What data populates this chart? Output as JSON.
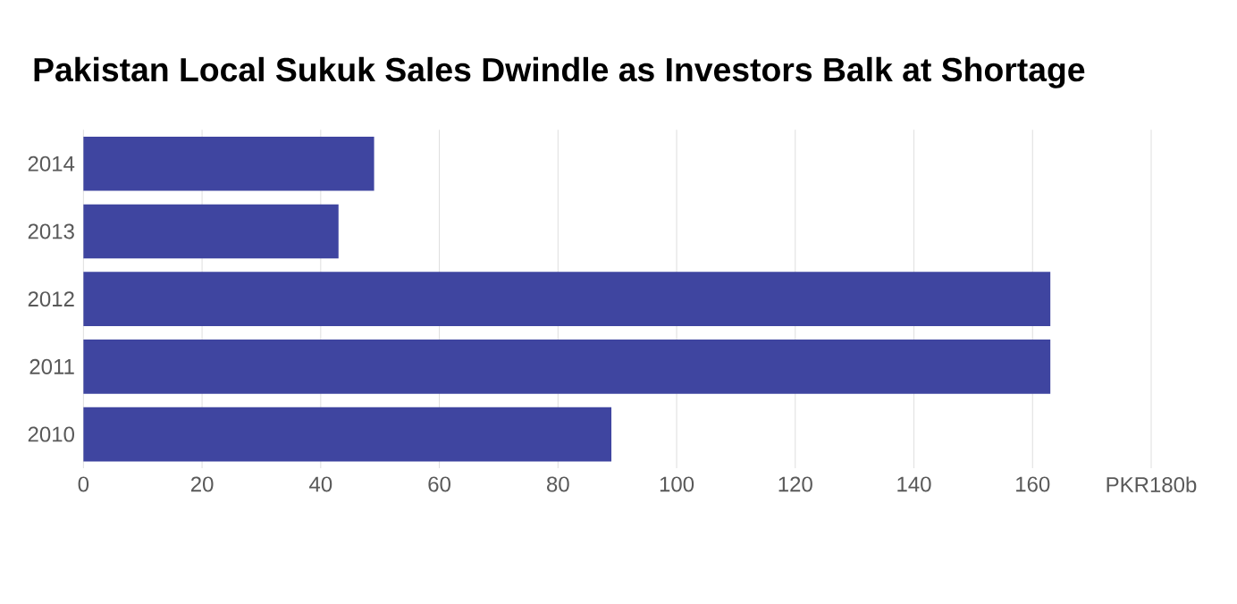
{
  "chart_data": {
    "type": "bar",
    "orientation": "horizontal",
    "title": "Pakistan Local Sukuk Sales Dwindle as Investors Balk at Shortage",
    "categories": [
      "2014",
      "2013",
      "2012",
      "2011",
      "2010"
    ],
    "values": [
      49,
      43,
      163,
      163,
      89
    ],
    "color": "#3f45a0",
    "xlim": [
      0,
      180
    ],
    "xticks": [
      0,
      20,
      40,
      60,
      80,
      100,
      120,
      140,
      160,
      {
        "value": 180,
        "label": "PKR180b"
      }
    ],
    "grid": "x"
  }
}
